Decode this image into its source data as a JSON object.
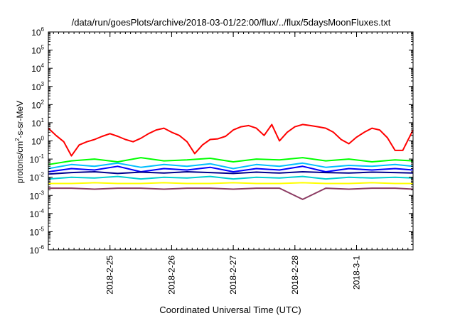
{
  "chart_data": {
    "type": "line",
    "title": "/data/run/goesPlots/archive/2018-03-01/22:00/flux/../flux/5daysMoonFluxes.txt",
    "xlabel": "Coordinated Universal Time (UTC)",
    "ylabel_parts": {
      "prefix": "protons/cm",
      "sup": "2",
      "suffix": "-s-sr-MeV"
    },
    "y_scale": "log",
    "ylim": [
      1e-06,
      1000000.0
    ],
    "y_ticks": [
      {
        "base": "10",
        "exp": "6"
      },
      {
        "base": "10",
        "exp": "5"
      },
      {
        "base": "10",
        "exp": "4"
      },
      {
        "base": "10",
        "exp": "3"
      },
      {
        "base": "10",
        "exp": "2"
      },
      {
        "base": "10",
        "exp": "1"
      },
      {
        "base": "10",
        "exp": "0"
      },
      {
        "base": "10",
        "exp": "-1"
      },
      {
        "base": "10",
        "exp": "-2"
      },
      {
        "base": "10",
        "exp": "-3"
      },
      {
        "base": "10",
        "exp": "-4"
      },
      {
        "base": "10",
        "exp": "-5"
      },
      {
        "base": "10",
        "exp": "-6"
      }
    ],
    "xlim": [
      "2018-02-24 00:00",
      "2018-03-01 22:00"
    ],
    "x_ticks": [
      "2018-2-25",
      "2018-2-26",
      "2018-2-27",
      "2018-2-28",
      "2018-3-1"
    ],
    "grid": false,
    "legend": "none",
    "series": [
      {
        "color": "#ff0000",
        "x": [
          "2018-02-24 00:00",
          "2018-02-24 03:00",
          "2018-02-24 06:00",
          "2018-02-24 09:00",
          "2018-02-24 12:00",
          "2018-02-24 15:00",
          "2018-02-24 18:00",
          "2018-02-24 21:00",
          "2018-02-25 00:00",
          "2018-02-25 03:00",
          "2018-02-25 06:00",
          "2018-02-25 09:00",
          "2018-02-25 12:00",
          "2018-02-25 15:00",
          "2018-02-25 18:00",
          "2018-02-25 21:00",
          "2018-02-26 00:00",
          "2018-02-26 03:00",
          "2018-02-26 06:00",
          "2018-02-26 09:00",
          "2018-02-26 12:00",
          "2018-02-26 15:00",
          "2018-02-26 18:00",
          "2018-02-26 21:00",
          "2018-02-27 00:00",
          "2018-02-27 03:00",
          "2018-02-27 06:00",
          "2018-02-27 09:00",
          "2018-02-27 12:00",
          "2018-02-27 15:00",
          "2018-02-27 18:00",
          "2018-02-27 21:00",
          "2018-02-28 00:00",
          "2018-02-28 03:00",
          "2018-02-28 06:00",
          "2018-02-28 09:00",
          "2018-02-28 12:00",
          "2018-02-28 15:00",
          "2018-02-28 18:00",
          "2018-02-28 21:00",
          "2018-03-01 00:00",
          "2018-03-01 03:00",
          "2018-03-01 06:00",
          "2018-03-01 09:00",
          "2018-03-01 12:00",
          "2018-03-01 15:00",
          "2018-03-01 18:00",
          "2018-03-01 22:00"
        ],
        "y": [
          5,
          2,
          0.9,
          0.15,
          0.6,
          0.9,
          1.2,
          1.8,
          2.5,
          1.8,
          1.2,
          0.9,
          1.4,
          2.5,
          4,
          5,
          3,
          2,
          0.9,
          0.2,
          0.6,
          1.2,
          1.3,
          1.8,
          4,
          6,
          7,
          5,
          2,
          8,
          1,
          3,
          6,
          8,
          7,
          6,
          5,
          3,
          1.2,
          0.7,
          1.6,
          3,
          5,
          4,
          1.5,
          0.3,
          0.3,
          4
        ]
      },
      {
        "color": "#00ff00",
        "x": [
          "2018-02-24 00:00",
          "2018-02-24 09:00",
          "2018-02-24 18:00",
          "2018-02-25 03:00",
          "2018-02-25 12:00",
          "2018-02-25 21:00",
          "2018-02-26 06:00",
          "2018-02-26 15:00",
          "2018-02-27 00:00",
          "2018-02-27 09:00",
          "2018-02-27 18:00",
          "2018-02-28 03:00",
          "2018-02-28 12:00",
          "2018-02-28 21:00",
          "2018-03-01 06:00",
          "2018-03-01 15:00",
          "2018-03-01 22:00"
        ],
        "y": [
          0.05,
          0.08,
          0.1,
          0.07,
          0.12,
          0.08,
          0.09,
          0.11,
          0.07,
          0.1,
          0.09,
          0.12,
          0.08,
          0.1,
          0.07,
          0.09,
          0.08
        ]
      },
      {
        "color": "#00bfff",
        "x": [
          "2018-02-24 00:00",
          "2018-02-24 09:00",
          "2018-02-24 18:00",
          "2018-02-25 03:00",
          "2018-02-25 12:00",
          "2018-02-25 21:00",
          "2018-02-26 06:00",
          "2018-02-26 15:00",
          "2018-02-27 00:00",
          "2018-02-27 09:00",
          "2018-02-27 18:00",
          "2018-02-28 03:00",
          "2018-02-28 12:00",
          "2018-02-28 21:00",
          "2018-03-01 06:00",
          "2018-03-01 15:00",
          "2018-03-01 22:00"
        ],
        "y": [
          0.03,
          0.05,
          0.04,
          0.06,
          0.035,
          0.05,
          0.04,
          0.055,
          0.03,
          0.05,
          0.04,
          0.06,
          0.035,
          0.045,
          0.04,
          0.05,
          0.04
        ]
      },
      {
        "color": "#0000ff",
        "x": [
          "2018-02-24 00:00",
          "2018-02-24 09:00",
          "2018-02-24 18:00",
          "2018-02-25 03:00",
          "2018-02-25 12:00",
          "2018-02-25 21:00",
          "2018-02-26 06:00",
          "2018-02-26 15:00",
          "2018-02-27 00:00",
          "2018-02-27 09:00",
          "2018-02-27 18:00",
          "2018-02-28 03:00",
          "2018-02-28 12:00",
          "2018-02-28 21:00",
          "2018-03-01 06:00",
          "2018-03-01 15:00",
          "2018-03-01 22:00"
        ],
        "y": [
          0.02,
          0.03,
          0.025,
          0.04,
          0.02,
          0.03,
          0.025,
          0.035,
          0.02,
          0.03,
          0.025,
          0.04,
          0.02,
          0.03,
          0.025,
          0.03,
          0.025
        ]
      },
      {
        "color": "#00008b",
        "x": [
          "2018-02-24 00:00",
          "2018-02-24 09:00",
          "2018-02-24 18:00",
          "2018-02-25 03:00",
          "2018-02-25 12:00",
          "2018-02-25 21:00",
          "2018-02-26 06:00",
          "2018-02-26 15:00",
          "2018-02-27 00:00",
          "2018-02-27 09:00",
          "2018-02-27 18:00",
          "2018-02-28 03:00",
          "2018-02-28 12:00",
          "2018-02-28 21:00",
          "2018-03-01 06:00",
          "2018-03-01 15:00",
          "2018-03-01 22:00"
        ],
        "y": [
          0.015,
          0.018,
          0.02,
          0.016,
          0.019,
          0.017,
          0.02,
          0.018,
          0.016,
          0.019,
          0.017,
          0.02,
          0.018,
          0.017,
          0.019,
          0.018,
          0.017
        ]
      },
      {
        "color": "#00ced1",
        "x": [
          "2018-02-24 00:00",
          "2018-02-24 09:00",
          "2018-02-24 18:00",
          "2018-02-25 03:00",
          "2018-02-25 12:00",
          "2018-02-25 21:00",
          "2018-02-26 06:00",
          "2018-02-26 15:00",
          "2018-02-27 00:00",
          "2018-02-27 09:00",
          "2018-02-27 18:00",
          "2018-02-28 03:00",
          "2018-02-28 12:00",
          "2018-02-28 21:00",
          "2018-03-01 06:00",
          "2018-03-01 15:00",
          "2018-03-01 22:00"
        ],
        "y": [
          0.008,
          0.01,
          0.009,
          0.011,
          0.008,
          0.01,
          0.009,
          0.011,
          0.008,
          0.01,
          0.009,
          0.011,
          0.008,
          0.01,
          0.009,
          0.01,
          0.009
        ]
      },
      {
        "color": "#ffff00",
        "x": [
          "2018-02-24 00:00",
          "2018-02-24 09:00",
          "2018-02-24 18:00",
          "2018-02-25 03:00",
          "2018-02-25 12:00",
          "2018-02-25 21:00",
          "2018-02-26 06:00",
          "2018-02-26 15:00",
          "2018-02-27 00:00",
          "2018-02-27 09:00",
          "2018-02-27 18:00",
          "2018-02-28 03:00",
          "2018-02-28 12:00",
          "2018-02-28 21:00",
          "2018-03-01 06:00",
          "2018-03-01 15:00",
          "2018-03-01 22:00"
        ],
        "y": [
          0.0045,
          0.0045,
          0.005,
          0.0045,
          0.0045,
          0.005,
          0.0045,
          0.0045,
          0.005,
          0.0045,
          0.0045,
          0.005,
          0.0045,
          0.0045,
          0.005,
          0.0045,
          0.0045
        ]
      },
      {
        "color": "#8b3a62",
        "x": [
          "2018-02-24 00:00",
          "2018-02-24 09:00",
          "2018-02-24 18:00",
          "2018-02-25 03:00",
          "2018-02-25 12:00",
          "2018-02-25 21:00",
          "2018-02-26 06:00",
          "2018-02-26 15:00",
          "2018-02-27 00:00",
          "2018-02-27 09:00",
          "2018-02-27 18:00",
          "2018-02-28 03:00",
          "2018-02-28 12:00",
          "2018-02-28 21:00",
          "2018-03-01 06:00",
          "2018-03-01 15:00",
          "2018-03-01 22:00"
        ],
        "y": [
          0.0025,
          0.0025,
          0.0022,
          0.0025,
          0.0025,
          0.0022,
          0.0025,
          0.0025,
          0.0022,
          0.0025,
          0.0025,
          0.0006,
          0.0025,
          0.0022,
          0.0025,
          0.0025,
          0.0022
        ]
      }
    ]
  }
}
